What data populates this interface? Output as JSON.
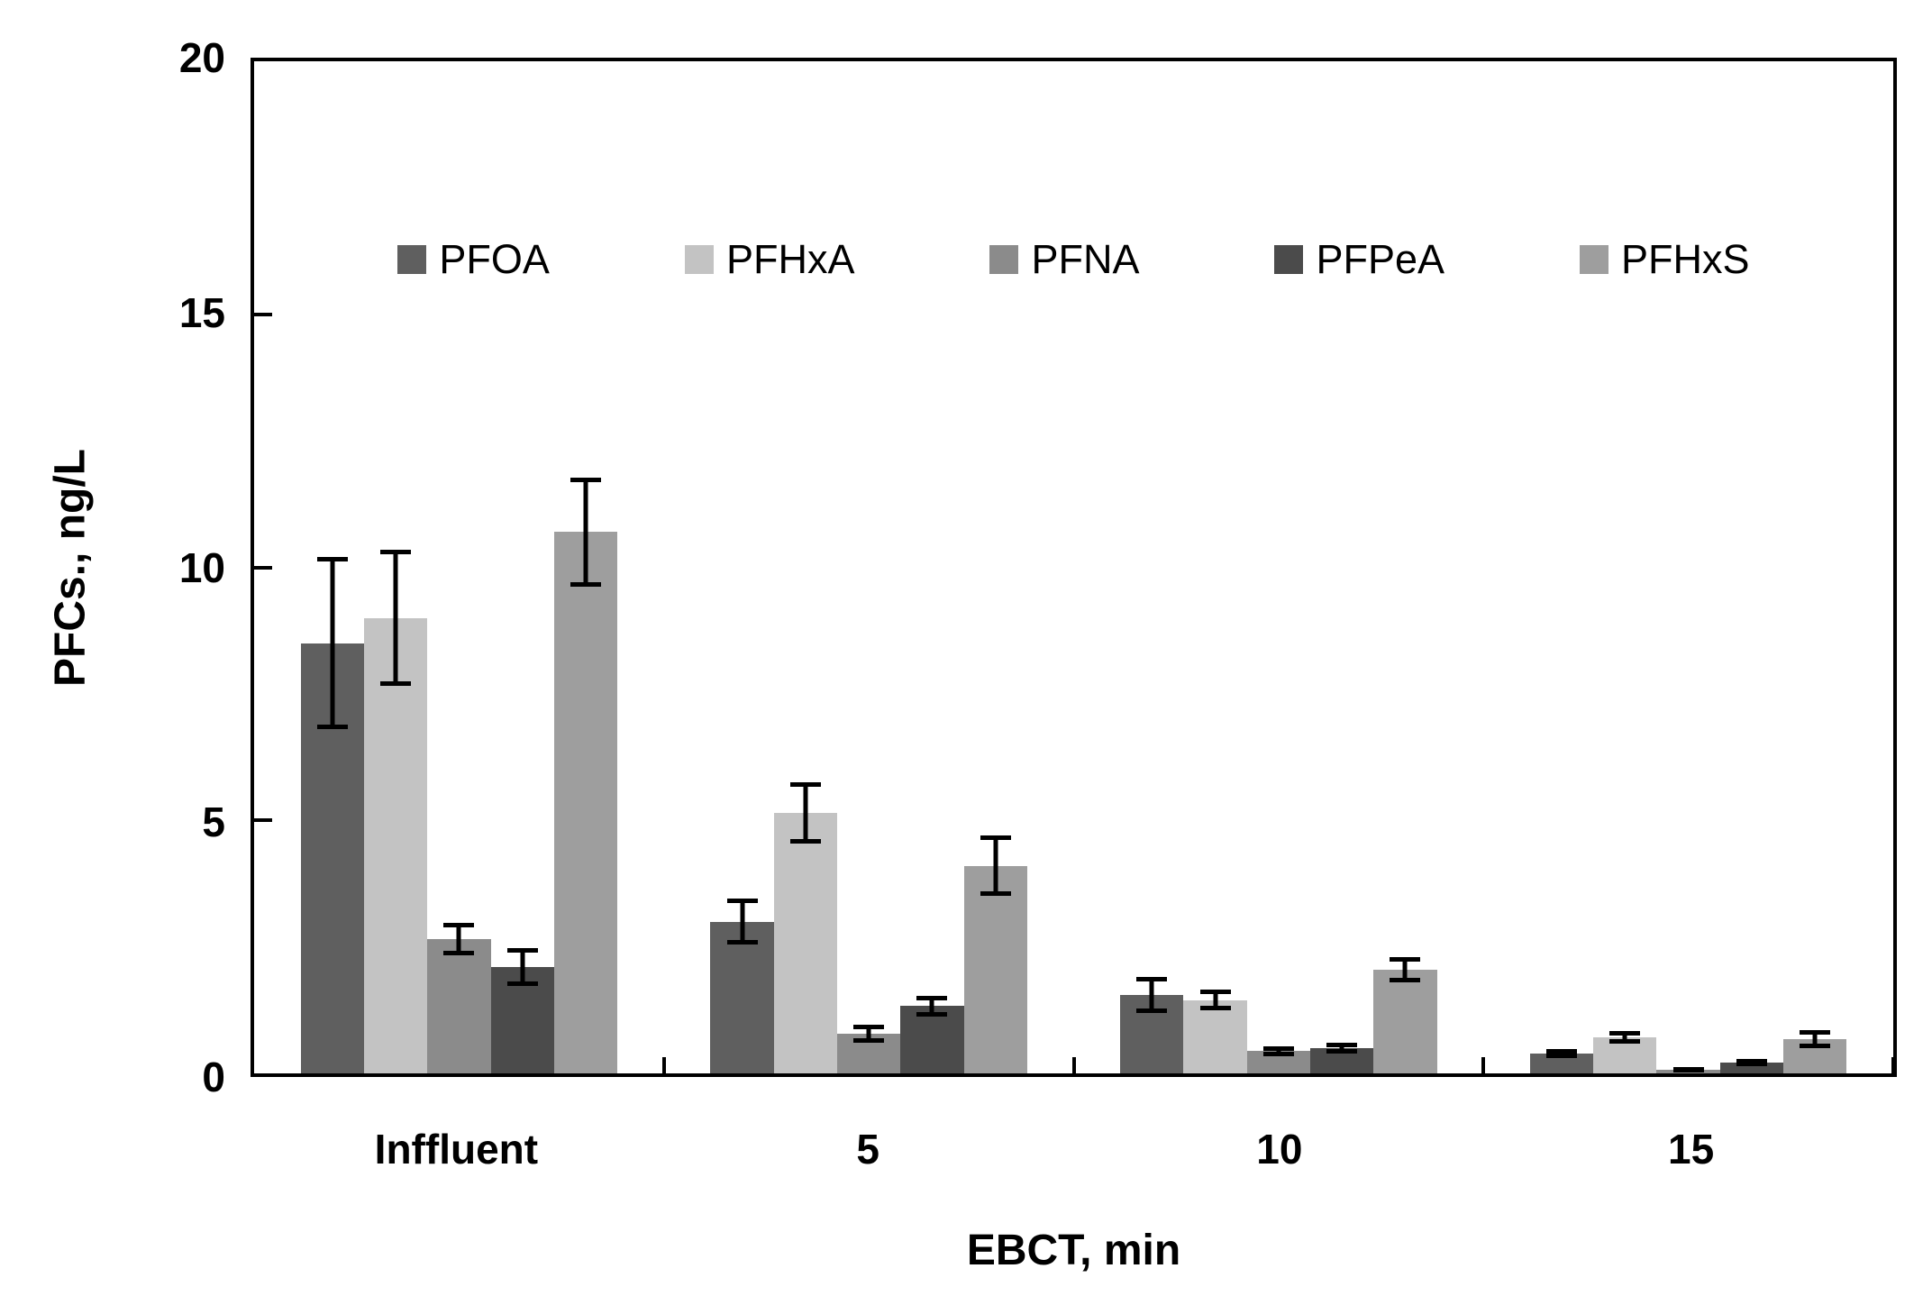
{
  "chart_data": {
    "type": "bar",
    "title": "",
    "xlabel": "EBCT, min",
    "ylabel": "PFCs., ng/L",
    "ylim": [
      0,
      20
    ],
    "yticks": [
      0,
      5,
      10,
      15,
      20
    ],
    "grid": false,
    "legend_position": "top-inside",
    "categories": [
      "Inffluent",
      "5",
      "10",
      "15"
    ],
    "series": [
      {
        "name": "PFOA",
        "color": "#5f5f5f",
        "values": [
          8.5,
          3.0,
          1.55,
          0.4
        ],
        "errors": [
          1.7,
          0.45,
          0.35,
          0.09
        ]
      },
      {
        "name": "PFHxA",
        "color": "#c3c3c3",
        "values": [
          9.0,
          5.15,
          1.45,
          0.71
        ],
        "errors": [
          1.35,
          0.6,
          0.2,
          0.13
        ]
      },
      {
        "name": "PFNA",
        "color": "#8b8b8b",
        "values": [
          2.65,
          0.78,
          0.44,
          0.07
        ],
        "errors": [
          0.32,
          0.18,
          0.1,
          0.04
        ]
      },
      {
        "name": "PFPeA",
        "color": "#4b4b4b",
        "values": [
          2.1,
          1.33,
          0.5,
          0.21
        ],
        "errors": [
          0.38,
          0.2,
          0.1,
          0.07
        ]
      },
      {
        "name": "PFHxS",
        "color": "#9e9e9e",
        "values": [
          10.7,
          4.1,
          2.05,
          0.68
        ],
        "errors": [
          1.08,
          0.6,
          0.25,
          0.18
        ]
      }
    ]
  },
  "axes": {
    "y_title": "PFCs., ng/L",
    "x_title": "EBCT, min"
  }
}
